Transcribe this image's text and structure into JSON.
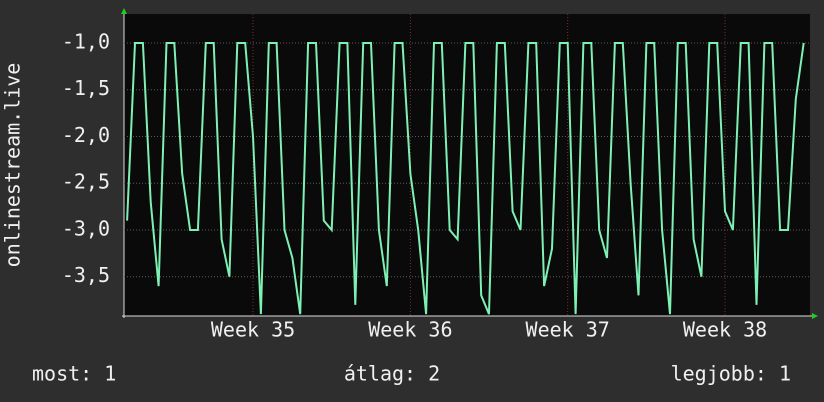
{
  "chart_data": {
    "type": "line",
    "y_label": "onlinestream.live",
    "x": [
      34.2,
      34.25,
      34.3,
      34.35,
      34.4,
      34.45,
      34.5,
      34.55,
      34.6,
      34.65,
      34.7,
      34.75,
      34.8,
      34.85,
      34.9,
      34.95,
      35.0,
      35.05,
      35.1,
      35.15,
      35.2,
      35.25,
      35.3,
      35.35,
      35.4,
      35.45,
      35.5,
      35.55,
      35.6,
      35.65,
      35.7,
      35.75,
      35.8,
      35.85,
      35.9,
      35.95,
      36.0,
      36.05,
      36.1,
      36.15,
      36.2,
      36.25,
      36.3,
      36.35,
      36.4,
      36.45,
      36.5,
      36.55,
      36.6,
      36.65,
      36.7,
      36.75,
      36.8,
      36.85,
      36.9,
      36.95,
      37.0,
      37.05,
      37.1,
      37.15,
      37.2,
      37.25,
      37.3,
      37.35,
      37.4,
      37.45,
      37.5,
      37.55,
      37.6,
      37.65,
      37.7,
      37.75,
      37.8,
      37.85,
      37.9,
      37.95,
      38.0,
      38.05,
      38.1,
      38.15,
      38.2,
      38.25,
      38.3,
      38.35,
      38.4,
      38.45,
      38.5
    ],
    "series": [
      {
        "color": "#7ff0b4",
        "values": [
          -2.9,
          -1,
          -1,
          -2.7,
          -3.6,
          -1,
          -1,
          -2.4,
          -3,
          -3,
          -1,
          -1,
          -3.1,
          -3.5,
          -1,
          -1,
          -2,
          -3.9,
          -1,
          -1,
          -3,
          -3.3,
          -3.9,
          -1,
          -1,
          -2.9,
          -3,
          -1,
          -1,
          -3.8,
          -1,
          -1,
          -3,
          -3.6,
          -1,
          -1,
          -2.4,
          -3,
          -3.9,
          -1,
          -1,
          -3,
          -3.1,
          -1,
          -1,
          -3.7,
          -3.9,
          -1,
          -1,
          -2.8,
          -3,
          -1,
          -1,
          -3.6,
          -3.2,
          -1,
          -1,
          -3.9,
          -1,
          -1,
          -3,
          -3.3,
          -1,
          -1,
          -2.5,
          -3.7,
          -1,
          -1,
          -3,
          -3.9,
          -1,
          -1,
          -3.1,
          -3.5,
          -1,
          -1,
          -2.8,
          -3,
          -1,
          -1,
          -3.8,
          -1,
          -1,
          -3,
          -3,
          -1.6,
          -1
        ]
      }
    ],
    "xlim": [
      34.18,
      38.54
    ],
    "ylim": [
      -3.92,
      -0.69
    ],
    "xticks": [
      {
        "value": 35,
        "label": "Week 35"
      },
      {
        "value": 36,
        "label": "Week 36"
      },
      {
        "value": 37,
        "label": "Week 37"
      },
      {
        "value": 38,
        "label": "Week 38"
      }
    ],
    "yticks": [
      {
        "value": -1,
        "label": "-1,0"
      },
      {
        "value": -1.5,
        "label": "-1,5"
      },
      {
        "value": -2,
        "label": "-2,0"
      },
      {
        "value": -2.5,
        "label": "-2,5"
      },
      {
        "value": -3,
        "label": "-3,0"
      },
      {
        "value": -3.5,
        "label": "-3,5"
      }
    ],
    "grid": true,
    "footer": [
      "most: 1",
      "átlag: 2",
      "legjobb: 1"
    ]
  }
}
